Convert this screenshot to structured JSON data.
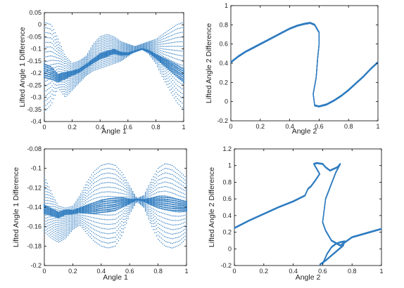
{
  "chart_data": [
    {
      "type": "scatter",
      "panel": "top-left",
      "xlabel": "Angle 1",
      "ylabel": "Lifted Angle 1 Difference",
      "xlim": [
        0,
        1
      ],
      "ylim": [
        -0.4,
        0.05
      ],
      "xticks": [
        "0",
        "0.2",
        "0.4",
        "0.6",
        "0.8",
        "1"
      ],
      "yticks": [
        "-0.4",
        "-0.35",
        "-0.3",
        "-0.25",
        "-0.2",
        "-0.15",
        "-0.1",
        "-0.05",
        "0",
        "0.05"
      ],
      "grid": false,
      "color": "#2f7cc0",
      "series": [
        {
          "x": [
            0,
            0.05,
            0.1,
            0.15,
            0.2,
            0.25,
            0.3,
            0.35,
            0.4,
            0.45,
            0.5,
            0.55,
            0.6,
            0.65,
            0.7,
            0.75,
            0.8,
            0.85,
            0.9,
            0.95,
            1
          ],
          "y_upper": [
            0.01,
            0.0,
            -0.06,
            -0.13,
            -0.16,
            -0.15,
            -0.13,
            -0.08,
            -0.05,
            -0.04,
            -0.05,
            -0.07,
            -0.08,
            -0.09,
            -0.08,
            -0.07,
            -0.06,
            -0.04,
            -0.02,
            0.0,
            0.01
          ],
          "y_lower": [
            -0.36,
            -0.33,
            -0.26,
            -0.3,
            -0.27,
            -0.24,
            -0.21,
            -0.19,
            -0.18,
            -0.17,
            -0.16,
            -0.15,
            -0.13,
            -0.11,
            -0.1,
            -0.12,
            -0.16,
            -0.22,
            -0.27,
            -0.32,
            -0.35
          ],
          "y_mean": [
            -0.19,
            -0.2,
            -0.22,
            -0.21,
            -0.2,
            -0.19,
            -0.17,
            -0.15,
            -0.13,
            -0.12,
            -0.11,
            -0.12,
            -0.12,
            -0.11,
            -0.1,
            -0.11,
            -0.13,
            -0.15,
            -0.17,
            -0.19,
            -0.21
          ]
        }
      ]
    },
    {
      "type": "line",
      "panel": "top-right",
      "xlabel": "Angle 2",
      "ylabel": "Lifted Angle 2 Difference",
      "xlim": [
        0,
        1
      ],
      "ylim": [
        -0.2,
        1
      ],
      "xticks": [
        "0",
        "0.2",
        "0.4",
        "0.6",
        "0.8",
        "1"
      ],
      "yticks": [
        "-0.2",
        "0",
        "0.2",
        "0.4",
        "0.6",
        "0.8",
        "1"
      ],
      "grid": false,
      "color": "#2f7cc0",
      "series": [
        {
          "x": [
            0,
            0.05,
            0.1,
            0.15,
            0.2,
            0.25,
            0.3,
            0.35,
            0.4,
            0.45,
            0.5,
            0.54,
            0.57,
            0.6,
            0.6,
            0.59,
            0.58,
            0.56,
            0.57,
            0.6,
            0.65,
            0.7,
            0.75,
            0.8,
            0.85,
            0.9,
            0.95,
            1
          ],
          "y": [
            0.41,
            0.47,
            0.52,
            0.56,
            0.6,
            0.64,
            0.68,
            0.72,
            0.76,
            0.79,
            0.81,
            0.82,
            0.8,
            0.72,
            0.6,
            0.45,
            0.25,
            0.08,
            -0.04,
            -0.05,
            -0.03,
            0.01,
            0.06,
            0.12,
            0.19,
            0.26,
            0.34,
            0.41
          ]
        }
      ]
    },
    {
      "type": "scatter",
      "panel": "bottom-left",
      "xlabel": "Angle 1",
      "ylabel": "Lifted Angle 1 Difference",
      "xlim": [
        0,
        1
      ],
      "ylim": [
        -0.2,
        -0.08
      ],
      "xticks": [
        "0",
        "0.2",
        "0.4",
        "0.6",
        "0.8",
        "1"
      ],
      "yticks": [
        "-0.2",
        "-0.18",
        "-0.16",
        "-0.14",
        "-0.12",
        "-0.1",
        "-0.08"
      ],
      "grid": false,
      "color": "#2f7cc0",
      "series": [
        {
          "x": [
            0,
            0.05,
            0.1,
            0.15,
            0.2,
            0.25,
            0.3,
            0.35,
            0.4,
            0.45,
            0.5,
            0.55,
            0.6,
            0.65,
            0.7,
            0.75,
            0.8,
            0.85,
            0.9,
            0.95,
            1
          ],
          "y_upper": [
            -0.108,
            -0.125,
            -0.139,
            -0.141,
            -0.139,
            -0.128,
            -0.114,
            -0.103,
            -0.097,
            -0.095,
            -0.097,
            -0.105,
            -0.118,
            -0.131,
            -0.128,
            -0.113,
            -0.1,
            -0.095,
            -0.097,
            -0.103,
            -0.11
          ],
          "y_lower": [
            -0.165,
            -0.172,
            -0.176,
            -0.172,
            -0.163,
            -0.158,
            -0.167,
            -0.175,
            -0.18,
            -0.182,
            -0.18,
            -0.168,
            -0.147,
            -0.134,
            -0.14,
            -0.158,
            -0.173,
            -0.18,
            -0.182,
            -0.179,
            -0.172
          ],
          "y_mean": [
            -0.142,
            -0.145,
            -0.148,
            -0.145,
            -0.145,
            -0.143,
            -0.142,
            -0.141,
            -0.139,
            -0.138,
            -0.137,
            -0.135,
            -0.134,
            -0.132,
            -0.133,
            -0.134,
            -0.135,
            -0.136,
            -0.137,
            -0.138,
            -0.139
          ]
        }
      ]
    },
    {
      "type": "line",
      "panel": "bottom-right",
      "xlabel": "Angle 2",
      "ylabel": "Lifted Angle 2 Difference",
      "xlim": [
        0,
        1
      ],
      "ylim": [
        -0.2,
        1.2
      ],
      "xticks": [
        "0",
        "0.2",
        "0.4",
        "0.6",
        "0.8",
        "1"
      ],
      "yticks": [
        "-0.2",
        "0",
        "0.2",
        "0.4",
        "0.6",
        "0.8",
        "1",
        "1.2"
      ],
      "grid": false,
      "color": "#2f7cc0",
      "series": [
        {
          "x": [
            0,
            0.1,
            0.2,
            0.3,
            0.4,
            0.48,
            0.5,
            0.52,
            0.55,
            0.58,
            0.56,
            0.54,
            0.56,
            0.6,
            0.62,
            0.65,
            0.7,
            0.72,
            0.69,
            0.62,
            0.6,
            0.62,
            0.66,
            0.72,
            0.8,
            0.9,
            1
          ],
          "y": [
            0.25,
            0.34,
            0.42,
            0.5,
            0.57,
            0.64,
            0.72,
            0.75,
            0.82,
            0.9,
            0.96,
            1.02,
            1.03,
            1.02,
            0.98,
            0.94,
            0.98,
            1.02,
            0.92,
            0.6,
            0.32,
            0.22,
            0.1,
            0.04,
            0.14,
            0.19,
            0.24
          ]
        },
        {
          "x": [
            0.6,
            0.63,
            0.66,
            0.69,
            0.72,
            0.75,
            0.74,
            0.7,
            0.66,
            0.62,
            0.58
          ],
          "y": [
            -0.18,
            -0.06,
            0.02,
            0.06,
            0.08,
            0.09,
            0.04,
            -0.02,
            -0.08,
            -0.14,
            -0.19
          ]
        }
      ]
    }
  ]
}
